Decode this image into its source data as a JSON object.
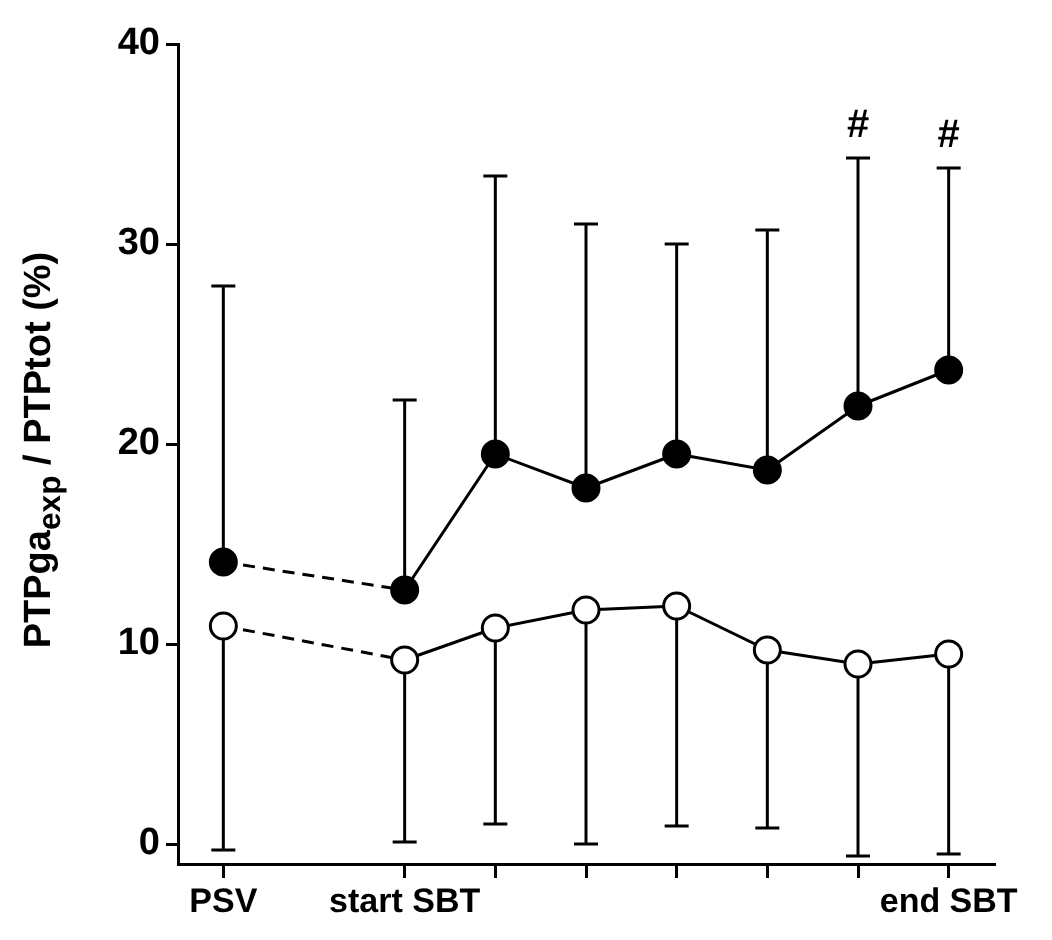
{
  "chart_data": {
    "type": "line",
    "ylabel": "PTPga$_{exp}$ / PTPtot (%)",
    "categories": [
      "PSV",
      null,
      "start SBT",
      null,
      null,
      null,
      null,
      null,
      "end SBT"
    ],
    "ylim": [
      -1,
      40
    ],
    "yticks": [
      0,
      10,
      20,
      30,
      40
    ],
    "grid": false,
    "legend": false,
    "series": [
      {
        "color": "#000000",
        "marker": "circle",
        "line_style": "solid",
        "values": [
          14.1,
          null,
          12.7,
          19.5,
          17.8,
          19.5,
          18.7,
          21.9,
          23.7
        ],
        "errors": [
          [
            14.1,
            27.9
          ],
          null,
          [
            12.7,
            22.2
          ],
          [
            19.5,
            33.4
          ],
          [
            17.8,
            31.0
          ],
          [
            19.5,
            30.0
          ],
          [
            18.7,
            30.7
          ],
          [
            21.9,
            34.3
          ],
          [
            23.7,
            33.8
          ]
        ]
      },
      {
        "color": "#ffffff",
        "marker": "circle",
        "line_style": "solid",
        "values": [
          10.9,
          null,
          9.2,
          10.8,
          11.7,
          11.9,
          9.7,
          9.0,
          9.5
        ],
        "errors": [
          [
            -0.3,
            10.9
          ],
          null,
          [
            0.1,
            9.2
          ],
          [
            1.0,
            10.8
          ],
          [
            0.0,
            11.7
          ],
          [
            0.9,
            11.9
          ],
          [
            0.8,
            9.7
          ],
          [
            -0.6,
            9.0
          ],
          [
            -0.5,
            9.5
          ]
        ]
      }
    ],
    "annotations": [
      "#",
      "#"
    ]
  }
}
